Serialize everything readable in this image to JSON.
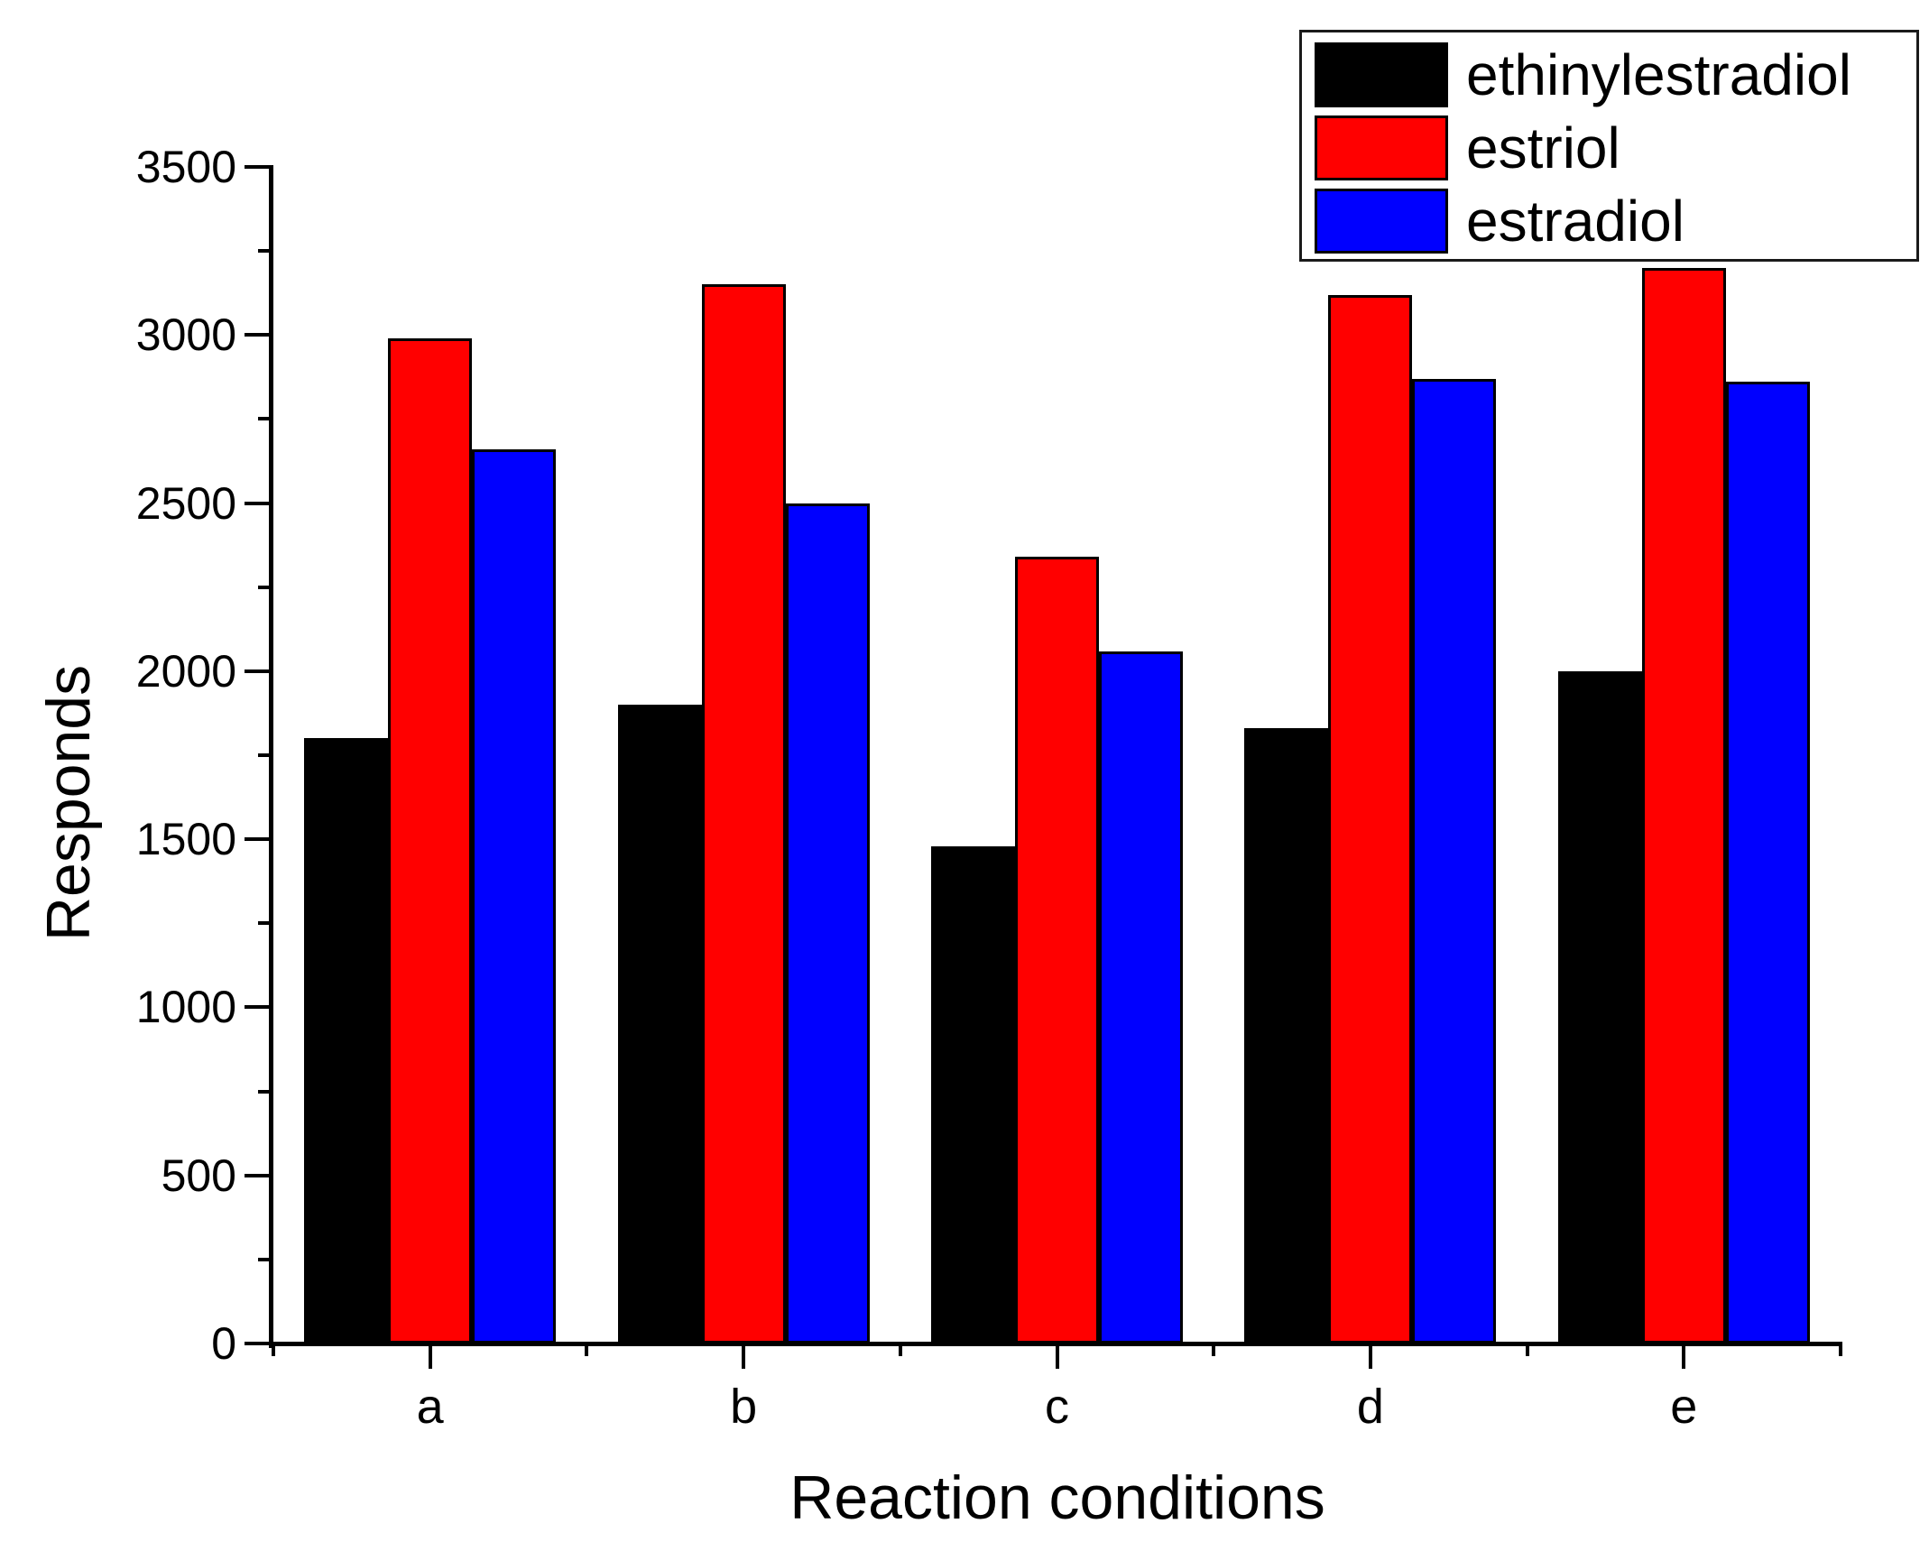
{
  "figure": {
    "background": "#ffffff",
    "text_color": "#000000",
    "axis_color": "#000000"
  },
  "chart_data": {
    "type": "bar",
    "title": "",
    "xlabel": "Reaction conditions",
    "ylabel": "Responds",
    "categories": [
      "a",
      "b",
      "c",
      "d",
      "e"
    ],
    "series": [
      {
        "name": "ethinylestradiol",
        "color": "#000000",
        "values": [
          1800,
          1900,
          1480,
          1830,
          2000
        ]
      },
      {
        "name": "estriol",
        "color": "#ff0000",
        "values": [
          2990,
          3150,
          2340,
          3120,
          3200
        ]
      },
      {
        "name": "estradiol",
        "color": "#0000ff",
        "values": [
          2660,
          2500,
          2060,
          2870,
          2860
        ]
      }
    ],
    "ylim": [
      0,
      3500
    ],
    "y_major_step": 500,
    "y_minor_step": 250,
    "y_tick_labels": [
      "0",
      "500",
      "1000",
      "1500",
      "2000",
      "2500",
      "3000",
      "3500"
    ],
    "grid": false,
    "legend_position": "top-right",
    "bar_border_color": "#000000"
  }
}
